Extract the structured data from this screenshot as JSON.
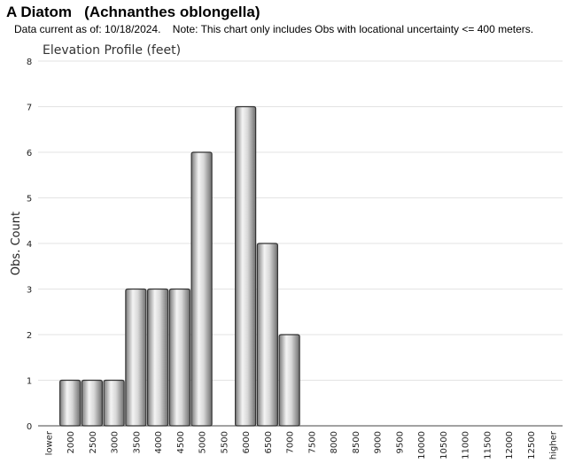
{
  "header": {
    "title": "A Diatom   (Achnanthes oblongella)",
    "subtitle": "Data current as of: 10/18/2024.    Note: This chart only includes Obs with locational uncertainty <= 400 meters."
  },
  "chart_data": {
    "type": "bar",
    "title": "Elevation Profile (feet)",
    "ylabel": "Obs. Count",
    "xlabel": "",
    "ylim": [
      0,
      8
    ],
    "yticks": [
      0,
      1,
      2,
      3,
      4,
      5,
      6,
      7,
      8
    ],
    "grid": true,
    "categories": [
      "lower",
      "2000",
      "2500",
      "3000",
      "3500",
      "4000",
      "4500",
      "5000",
      "5500",
      "6000",
      "6500",
      "7000",
      "7500",
      "8000",
      "8500",
      "9000",
      "9500",
      "10000",
      "10500",
      "11000",
      "11500",
      "12000",
      "12500",
      "higher"
    ],
    "values": [
      0,
      1,
      1,
      1,
      3,
      3,
      3,
      6,
      0,
      7,
      4,
      2,
      0,
      0,
      0,
      0,
      0,
      0,
      0,
      0,
      0,
      0,
      0,
      0
    ]
  }
}
